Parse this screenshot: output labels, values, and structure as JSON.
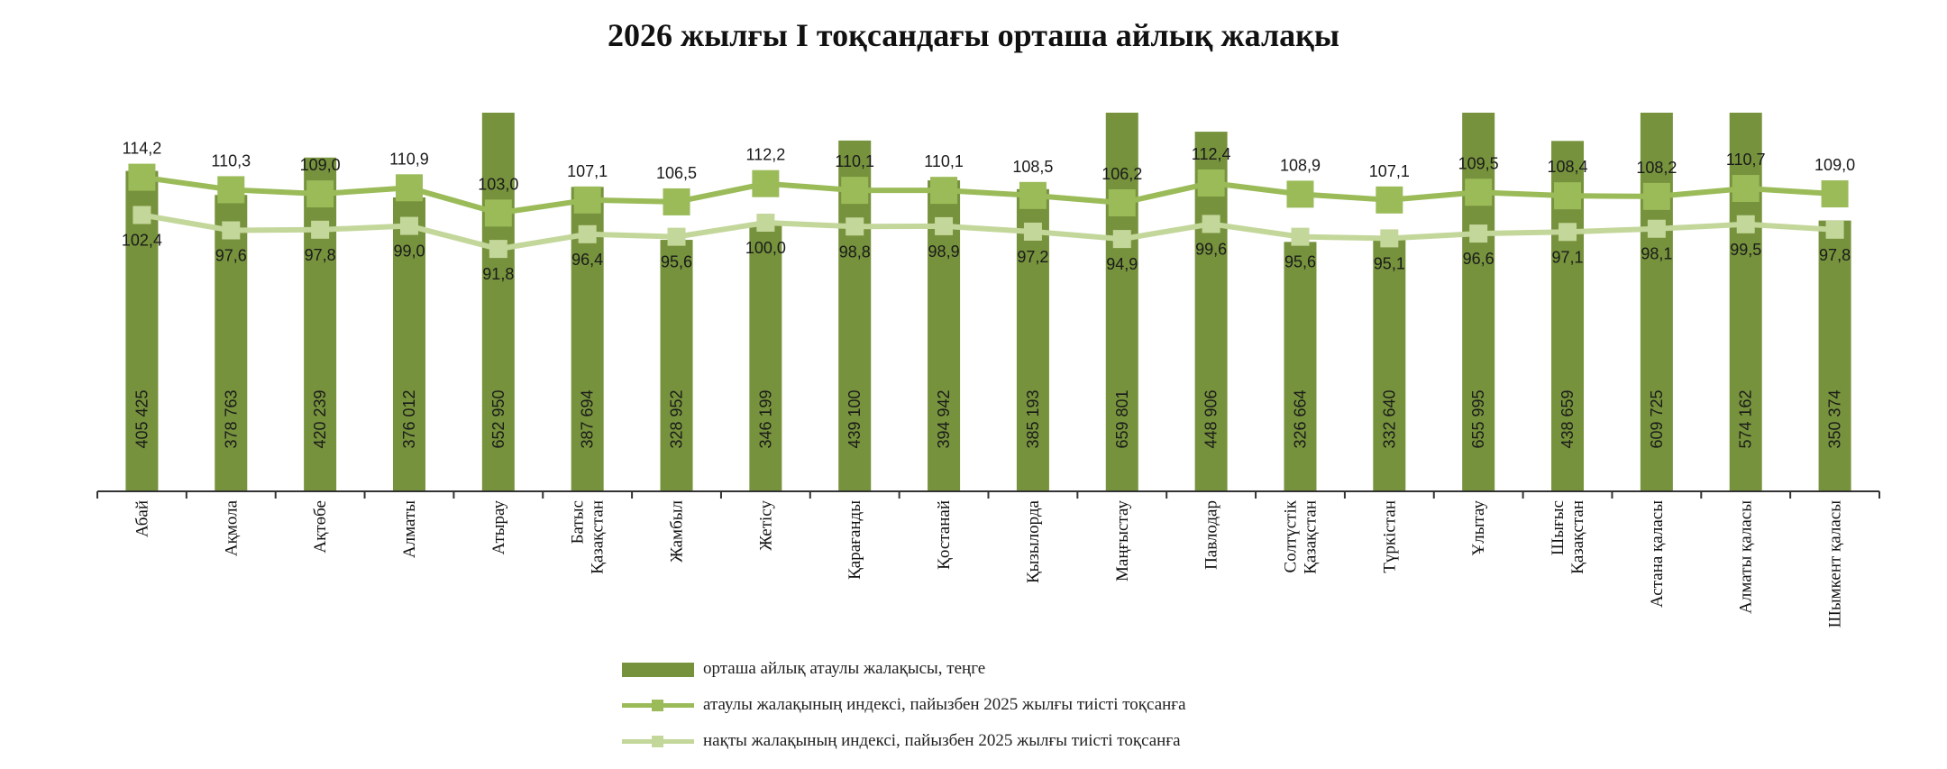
{
  "chart_data": {
    "type": "bar",
    "title": "2026 жылғы I тоқсандағы орташа айлық жалақы",
    "xlabel": "",
    "ylabel": "",
    "categories": [
      [
        "Абай"
      ],
      [
        "Ақмола"
      ],
      [
        "Ақтөбе"
      ],
      [
        "Алматы"
      ],
      [
        "Атырау"
      ],
      [
        "Батыс",
        "Қазақстан"
      ],
      [
        "Жамбыл"
      ],
      [
        "Жетісу"
      ],
      [
        "Қарағанды"
      ],
      [
        "Қостанай"
      ],
      [
        "Қызылорда"
      ],
      [
        "Маңғыстау"
      ],
      [
        "Павлодар"
      ],
      [
        "Солтүстік",
        "Қазақстан"
      ],
      [
        "Түркістан"
      ],
      [
        "Ұлытау"
      ],
      [
        "Шығыс",
        "Қазақстан"
      ],
      [
        "Астана қаласы"
      ],
      [
        "Алматы қаласы"
      ],
      [
        "Шымкент қаласы"
      ]
    ],
    "series": [
      {
        "name": "орташа айлық атаулы жалақысы, теңге",
        "kind": "bar",
        "values": [
          405425,
          378763,
          420239,
          376012,
          652950,
          387694,
          328952,
          346199,
          439100,
          394942,
          385193,
          659801,
          448906,
          326664,
          332640,
          655995,
          438659,
          609725,
          574162,
          350374
        ],
        "labels": [
          "405 425",
          "378 763",
          "420 239",
          "376 012",
          "652 950",
          "387 694",
          "328 952",
          "346 199",
          "439 100",
          "394 942",
          "385 193",
          "659 801",
          "448 906",
          "326 664",
          "332 640",
          "655 995",
          "438 659",
          "609 725",
          "574 162",
          "350 374"
        ]
      },
      {
        "name": "атаулы жалақының индексі, пайызбен 2025 жылғы тиісті тоқсанға",
        "kind": "line",
        "values": [
          114.2,
          110.3,
          109.0,
          110.9,
          103.0,
          107.1,
          106.5,
          112.2,
          110.1,
          110.1,
          108.5,
          106.2,
          112.4,
          108.9,
          107.1,
          109.5,
          108.4,
          108.2,
          110.7,
          109.0
        ],
        "labels": [
          "114,2",
          "110,3",
          "109,0",
          "110,9",
          "103,0",
          "107,1",
          "106,5",
          "112,2",
          "110,1",
          "110,1",
          "108,5",
          "106,2",
          "112,4",
          "108,9",
          "107,1",
          "109,5",
          "108,4",
          "108,2",
          "110,7",
          "109,0"
        ]
      },
      {
        "name": "нақты жалақының индексі, пайызбен 2025 жылғы тиісті тоқсанға",
        "kind": "line",
        "values": [
          102.4,
          97.6,
          97.8,
          99.0,
          91.8,
          96.4,
          95.6,
          100.0,
          98.8,
          98.9,
          97.2,
          94.9,
          99.6,
          95.6,
          95.1,
          96.6,
          97.1,
          98.1,
          99.5,
          97.8
        ],
        "labels": [
          "102,4",
          "97,6",
          "97,8",
          "99,0",
          "91,8",
          "96,4",
          "95,6",
          "100,0",
          "98,8",
          "98,9",
          "97,2",
          "94,9",
          "99,6",
          "95,6",
          "95,1",
          "96,6",
          "97,1",
          "98,1",
          "99,5",
          "97,8"
        ]
      }
    ],
    "legend": "bottom-center",
    "grid": false,
    "colors": {
      "bar": "#76923c",
      "nominal_line": "#9bbb59",
      "real_line": "#c4d79b",
      "axis": "#333333",
      "text": "#222222"
    }
  }
}
